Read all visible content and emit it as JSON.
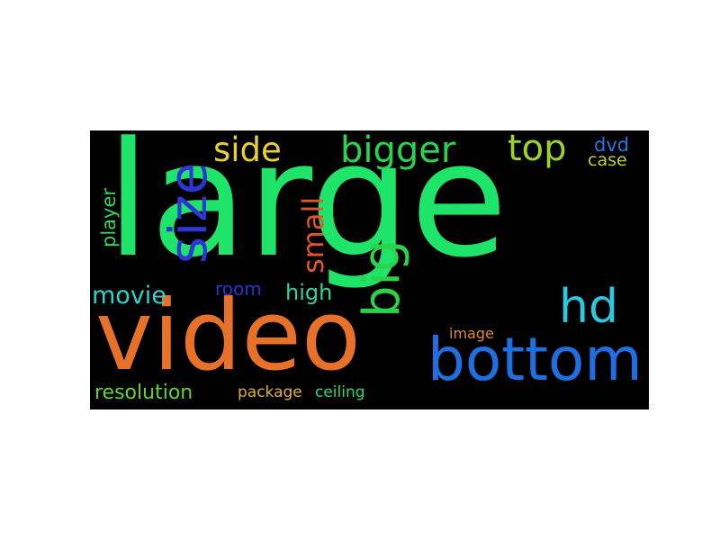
{
  "words": {
    "large": {
      "text": "large",
      "color": "#1ee56a"
    },
    "video": {
      "text": "video",
      "color": "#e8712a"
    },
    "bottom": {
      "text": "bottom",
      "color": "#1e6fe0"
    },
    "size": {
      "text": "size",
      "color": "#2f36d6"
    },
    "big": {
      "text": "big",
      "color": "#2ad34a"
    },
    "bigger": {
      "text": "bigger",
      "color": "#27d34f"
    },
    "top": {
      "text": "top",
      "color": "#9bd328"
    },
    "side": {
      "text": "side",
      "color": "#e8d22a"
    },
    "hd": {
      "text": "hd",
      "color": "#29c9e0"
    },
    "small": {
      "text": "small",
      "color": "#e0552a"
    },
    "movie": {
      "text": "movie",
      "color": "#2bd2c8"
    },
    "high": {
      "text": "high",
      "color": "#2bd4a0"
    },
    "room": {
      "text": "room",
      "color": "#2d2fd0"
    },
    "player": {
      "text": "player",
      "color": "#36d65a"
    },
    "resolution": {
      "text": "resolution",
      "color": "#5fd52c"
    },
    "package": {
      "text": "package",
      "color": "#e0b028"
    },
    "ceiling": {
      "text": "ceiling",
      "color": "#2bd87a"
    },
    "image": {
      "text": "image",
      "color": "#e08a2a"
    },
    "dvd": {
      "text": "dvd",
      "color": "#2b73e0"
    },
    "case": {
      "text": "case",
      "color": "#b5d22a"
    }
  }
}
